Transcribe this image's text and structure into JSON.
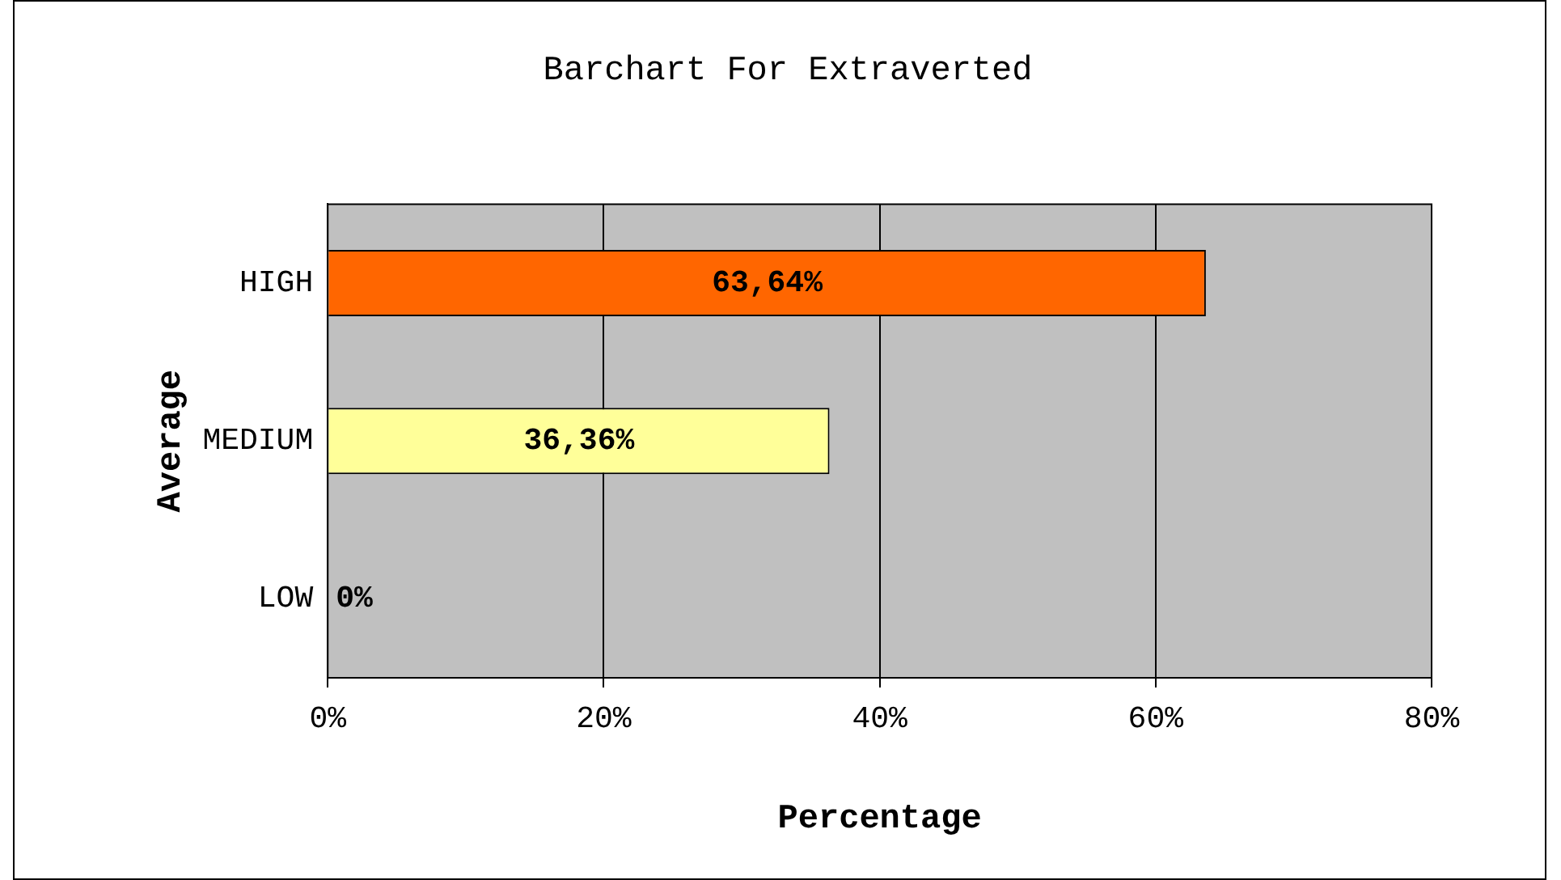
{
  "chart_data": {
    "type": "bar",
    "orientation": "horizontal",
    "title": "Barchart For Extraverted",
    "xlabel": "Percentage",
    "ylabel": "Average",
    "categories": [
      "HIGH",
      "MEDIUM",
      "LOW"
    ],
    "values": [
      63.64,
      36.36,
      0
    ],
    "colors": [
      "#ff6600",
      "#ffff99",
      "#339966"
    ],
    "value_labels": [
      "63,64%",
      "36,36%",
      "0%"
    ],
    "xlim": [
      0,
      80
    ],
    "xticks": [
      {
        "value": 0,
        "label": "0%"
      },
      {
        "value": 20,
        "label": "20%"
      },
      {
        "value": 40,
        "label": "40%"
      },
      {
        "value": 60,
        "label": "60%"
      },
      {
        "value": 80,
        "label": "80%"
      }
    ],
    "grid": "x",
    "legend": false
  }
}
